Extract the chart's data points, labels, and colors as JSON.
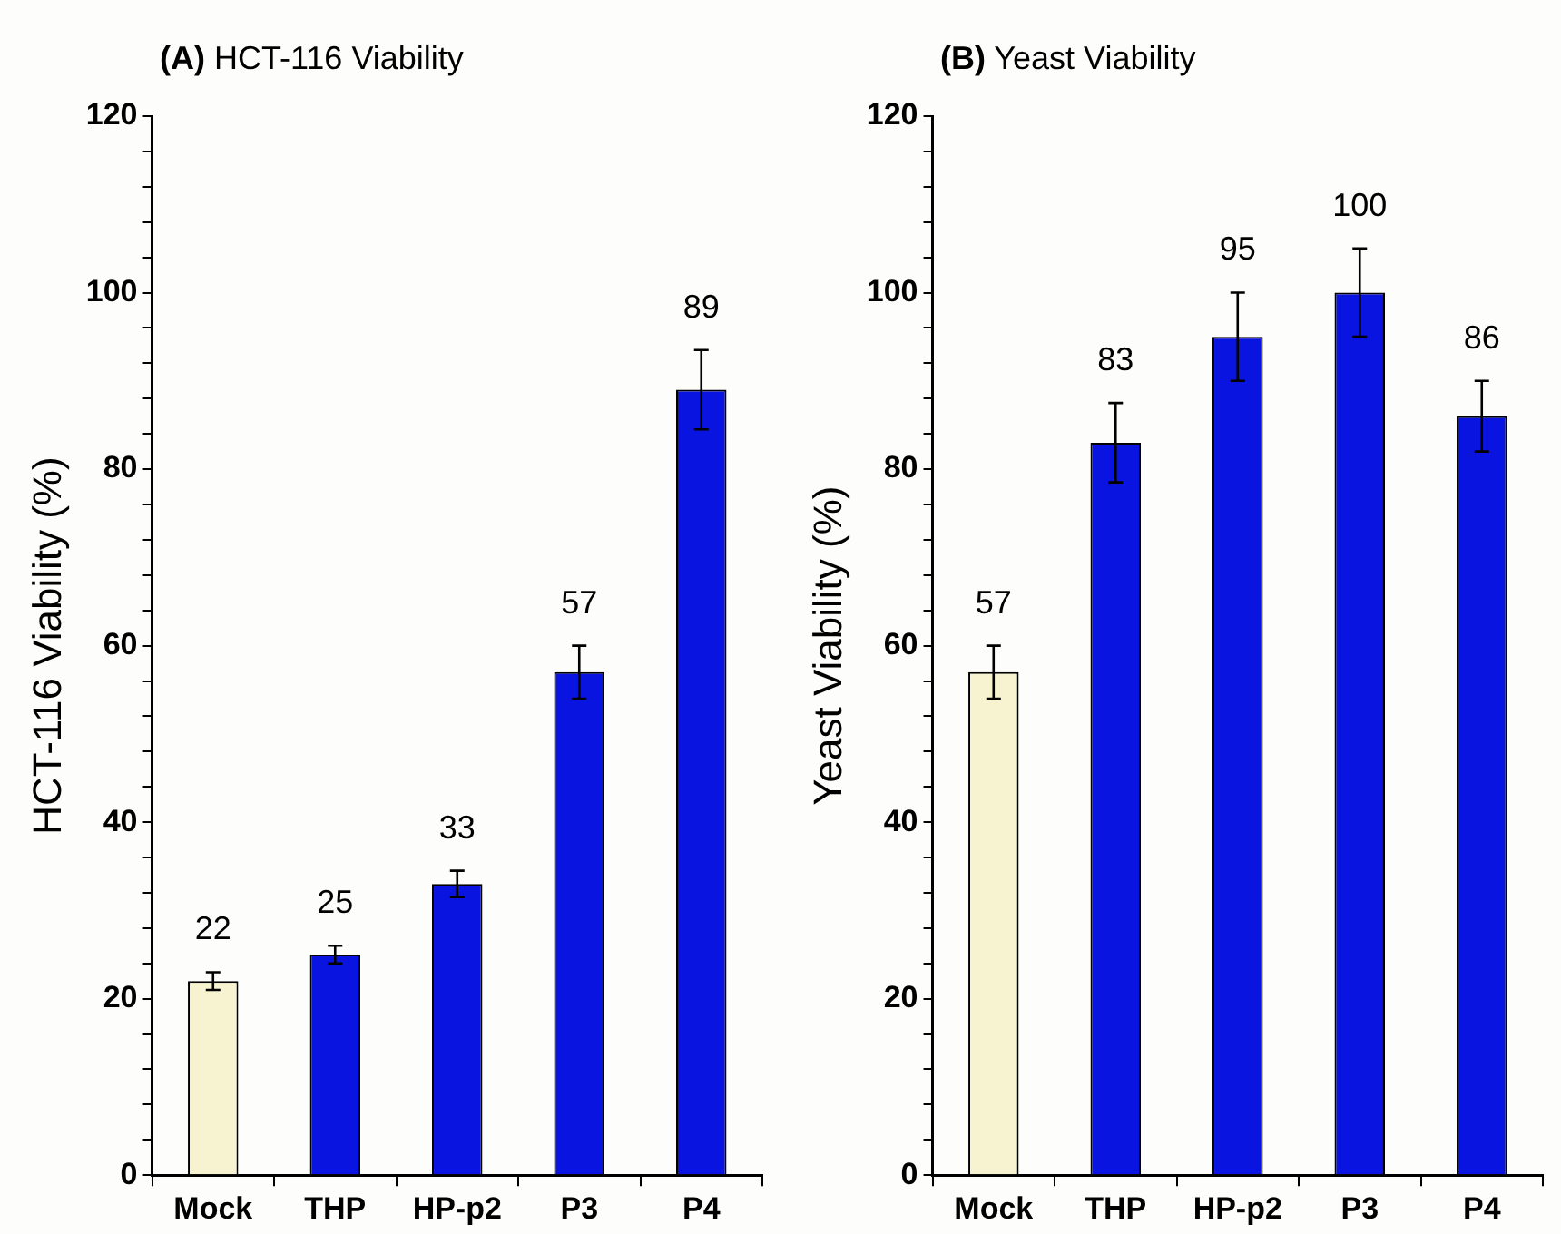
{
  "chart_data": [
    {
      "type": "bar",
      "title": "(A) HCT-116 Viability",
      "ylabel": "HCT-116 Viability (%)",
      "categories": [
        "Mock",
        "THP",
        "HP-p2",
        "P3",
        "P4"
      ],
      "values": [
        22,
        25,
        33,
        57,
        89
      ],
      "colors": [
        "#f7f3d0",
        "#0a14e0",
        "#0a14e0",
        "#0a14e0",
        "#0a14e0"
      ],
      "errors": [
        1,
        1,
        1.5,
        3,
        4.5
      ],
      "ylim": [
        0,
        120
      ],
      "yticks": [
        0,
        {
          "value": 4,
          "label": null
        },
        {
          "value": 8,
          "label": null
        },
        {
          "value": 12,
          "label": null
        },
        {
          "value": 16,
          "label": null
        },
        20,
        {
          "value": 24,
          "label": null
        },
        {
          "value": 28,
          "label": null
        },
        {
          "value": 32,
          "label": null
        },
        {
          "value": 36,
          "label": null
        },
        40,
        {
          "value": 44,
          "label": null
        },
        {
          "value": 48,
          "label": null
        },
        {
          "value": 52,
          "label": null
        },
        {
          "value": 56,
          "label": null
        },
        60,
        {
          "value": 64,
          "label": null
        },
        {
          "value": 68,
          "label": null
        },
        {
          "value": 72,
          "label": null
        },
        {
          "value": 76,
          "label": null
        },
        80,
        {
          "value": 84,
          "label": null
        },
        {
          "value": 88,
          "label": null
        },
        {
          "value": 92,
          "label": null
        },
        {
          "value": 96,
          "label": null
        },
        100,
        {
          "value": 104,
          "label": null
        },
        {
          "value": 108,
          "label": null
        },
        {
          "value": 112,
          "label": null
        },
        {
          "value": 116,
          "label": null
        },
        120
      ],
      "data_labels": true,
      "grid": false,
      "legend": false
    },
    {
      "type": "bar",
      "title": "(B) Yeast Viability",
      "ylabel": "Yeast Viability (%)",
      "categories": [
        "Mock",
        "THP",
        "HP-p2",
        "P3",
        "P4"
      ],
      "values": [
        57,
        83,
        95,
        100,
        86
      ],
      "colors": [
        "#f7f3d0",
        "#0a14e0",
        "#0a14e0",
        "#0a14e0",
        "#0a14e0"
      ],
      "errors": [
        3,
        4.5,
        5,
        5,
        4
      ],
      "ylim": [
        0,
        120
      ],
      "yticks": [
        0,
        {
          "value": 4,
          "label": null
        },
        {
          "value": 8,
          "label": null
        },
        {
          "value": 12,
          "label": null
        },
        {
          "value": 16,
          "label": null
        },
        20,
        {
          "value": 24,
          "label": null
        },
        {
          "value": 28,
          "label": null
        },
        {
          "value": 32,
          "label": null
        },
        {
          "value": 36,
          "label": null
        },
        40,
        {
          "value": 44,
          "label": null
        },
        {
          "value": 48,
          "label": null
        },
        {
          "value": 52,
          "label": null
        },
        {
          "value": 56,
          "label": null
        },
        60,
        {
          "value": 64,
          "label": null
        },
        {
          "value": 68,
          "label": null
        },
        {
          "value": 72,
          "label": null
        },
        {
          "value": 76,
          "label": null
        },
        80,
        {
          "value": 84,
          "label": null
        },
        {
          "value": 88,
          "label": null
        },
        {
          "value": 92,
          "label": null
        },
        {
          "value": 96,
          "label": null
        },
        100,
        {
          "value": 104,
          "label": null
        },
        {
          "value": 108,
          "label": null
        },
        {
          "value": 112,
          "label": null
        },
        {
          "value": 116,
          "label": null
        },
        120
      ],
      "data_labels": true,
      "grid": false,
      "legend": false
    }
  ]
}
